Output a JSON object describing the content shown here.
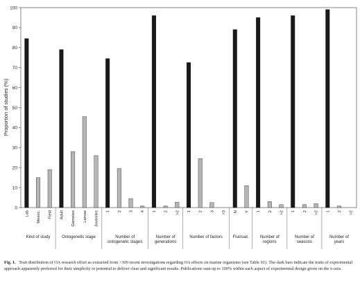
{
  "chart_data": {
    "type": "bar",
    "ylabel": "Proportion of studies (%)",
    "ylim": [
      0,
      100
    ],
    "yticks": [
      0,
      10,
      20,
      30,
      40,
      50,
      60,
      70,
      80,
      90,
      100
    ],
    "dark_color": "#1a1a1a",
    "light_color": "#b5b5b5",
    "groups": [
      {
        "name": "Kind of study",
        "bars": [
          {
            "label": "Lab",
            "value": 84.5,
            "dark": true
          },
          {
            "label": "Mesoc.",
            "value": 15,
            "dark": false
          },
          {
            "label": "Field",
            "value": 19,
            "dark": false
          }
        ]
      },
      {
        "name": "Ontogenetic stage",
        "bars": [
          {
            "label": "Adult",
            "value": 79,
            "dark": true
          },
          {
            "label": "Gametes",
            "value": 28,
            "dark": false
          },
          {
            "label": "Larvae",
            "value": 45.5,
            "dark": false
          },
          {
            "label": "Juveniles",
            "value": 26,
            "dark": false
          }
        ]
      },
      {
        "name": "Number of ontogenetic stages",
        "bars": [
          {
            "label": "1",
            "value": 74.5,
            "dark": true
          },
          {
            "label": "2",
            "value": 19.5,
            "dark": false
          },
          {
            "label": "3",
            "value": 4.5,
            "dark": false
          },
          {
            "label": "4",
            "value": 0.8,
            "dark": false
          }
        ]
      },
      {
        "name": "Number of generations",
        "bars": [
          {
            "label": "1",
            "value": 96,
            "dark": true
          },
          {
            "label": "2",
            "value": 0.8,
            "dark": false
          },
          {
            "label": ">2",
            "value": 2.7,
            "dark": false
          }
        ]
      },
      {
        "name": "Number of factors",
        "bars": [
          {
            "label": "1",
            "value": 72.5,
            "dark": true
          },
          {
            "label": "2",
            "value": 24.5,
            "dark": false
          },
          {
            "label": "3",
            "value": 2.5,
            "dark": false
          },
          {
            "label": ">3",
            "value": 0,
            "dark": false
          }
        ]
      },
      {
        "name": "Fluctuat.",
        "bars": [
          {
            "label": "N",
            "value": 89,
            "dark": true
          },
          {
            "label": "Y",
            "value": 11,
            "dark": false
          }
        ]
      },
      {
        "name": "Number of regions",
        "bars": [
          {
            "label": "1",
            "value": 95,
            "dark": true
          },
          {
            "label": "2",
            "value": 3,
            "dark": false
          },
          {
            "label": ">2",
            "value": 1.5,
            "dark": false
          }
        ]
      },
      {
        "name": "Number of seasons",
        "bars": [
          {
            "label": "1",
            "value": 96,
            "dark": true
          },
          {
            "label": "2",
            "value": 1.5,
            "dark": false
          },
          {
            "label": ">2",
            "value": 2,
            "dark": false
          }
        ]
      },
      {
        "name": "Number of years",
        "bars": [
          {
            "label": "1",
            "value": 99,
            "dark": true
          },
          {
            "label": "2",
            "value": 0.8,
            "dark": false
          },
          {
            "label": ">2",
            "value": 0,
            "dark": false
          }
        ]
      }
    ]
  },
  "caption": {
    "label": "Fig. 1.",
    "text": "Trait distribution of OA research effort as extracted from >300 recent investigations regarding OA effects on marine organisms (see Table S1). The dark bars indicate the traits of experimental approach apparently preferred for their simplicity or potential to deliver clear and significant results. Publications sum up to 100% within each aspect of experimental design given on the x-axis."
  }
}
